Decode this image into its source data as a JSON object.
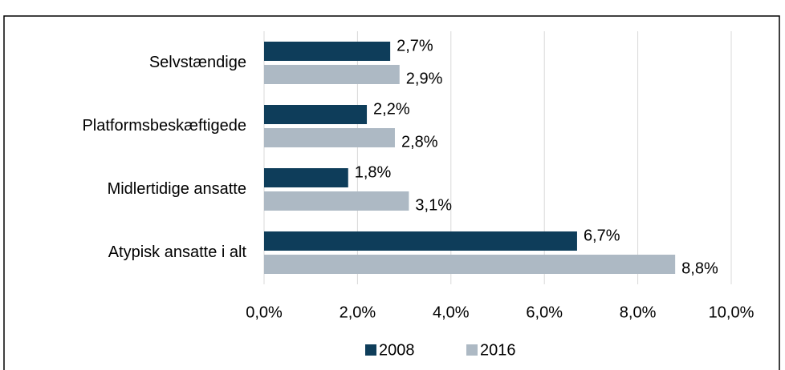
{
  "chart_data": {
    "type": "bar",
    "orientation": "horizontal",
    "categories": [
      "Selvstændige",
      "Platformsbeskæftigede",
      "Midlertidige ansatte",
      "Atypisk ansatte i alt"
    ],
    "series": [
      {
        "name": "2008",
        "color": "#0e3d5a",
        "values": [
          2.7,
          2.2,
          1.8,
          6.7
        ],
        "value_labels": [
          "2,7%",
          "2,2%",
          "1,8%",
          "6,7%"
        ]
      },
      {
        "name": "2016",
        "color": "#adb9c4",
        "values": [
          2.9,
          2.8,
          3.1,
          8.8
        ],
        "value_labels": [
          "2,9%",
          "2,8%",
          "3,1%",
          "8,8%"
        ]
      }
    ],
    "xlim": [
      0,
      10
    ],
    "xticks": [
      {
        "value": 0,
        "label": "0,0%"
      },
      {
        "value": 2,
        "label": "2,0%"
      },
      {
        "value": 4,
        "label": "4,0%"
      },
      {
        "value": 6,
        "label": "6,0%"
      },
      {
        "value": 8,
        "label": "8,0%"
      },
      {
        "value": 10,
        "label": "10,0%"
      }
    ],
    "grid": true,
    "legend": "bottom"
  }
}
